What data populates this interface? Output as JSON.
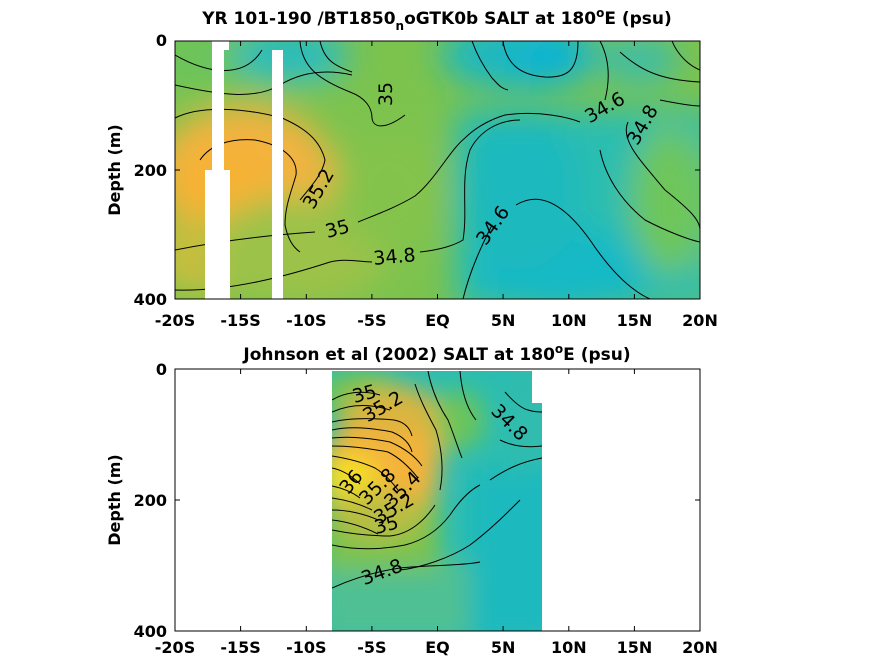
{
  "chart_data": [
    {
      "type": "contour",
      "title": "YR 101-190 /BT1850",
      "title_sub": "n",
      "title_mid": "oGTK0b SALT at 180",
      "title_sup": "o",
      "title_end": "E (psu)",
      "ylabel": "Depth (m)",
      "xlim": [
        -20,
        20
      ],
      "ylim": [
        0,
        400
      ],
      "x_ticks": [
        "-20S",
        "-15S",
        "-10S",
        "-5S",
        "EQ",
        "5N",
        "10N",
        "15N",
        "20N"
      ],
      "y_ticks": [
        "0",
        "200",
        "400"
      ],
      "contour_labels": [
        "35",
        "34.6",
        "34.8",
        "35.2",
        "35",
        "34.8",
        "34.6"
      ]
    },
    {
      "type": "contour",
      "title": "Johnson et al (2002) SALT at 180",
      "title_sup": "o",
      "title_end": "E (psu)",
      "ylabel": "Depth (m)",
      "xlim": [
        -20,
        20
      ],
      "ylim": [
        0,
        400
      ],
      "data_xlim": [
        -8,
        8
      ],
      "x_ticks": [
        "-20S",
        "-15S",
        "-10S",
        "-5S",
        "EQ",
        "5N",
        "10N",
        "15N",
        "20N"
      ],
      "y_ticks": [
        "0",
        "200",
        "400"
      ],
      "contour_labels": [
        "35",
        "35.2",
        "34.8",
        "36",
        "35.8",
        "35.4",
        "35.2",
        "35",
        "34.8"
      ]
    }
  ],
  "colors": {
    "low": "#0cb9c9",
    "mid": "#86c64a",
    "high": "#f4b33b",
    "peak": "#f7f31a"
  }
}
